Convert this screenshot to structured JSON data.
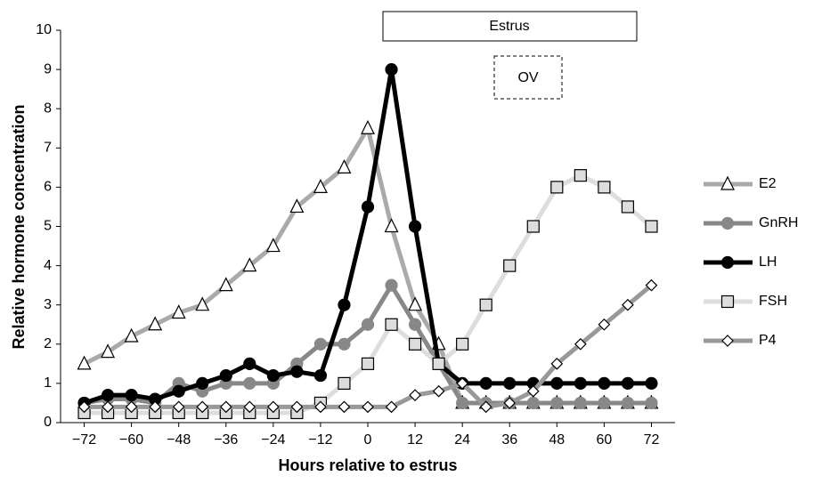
{
  "chart_data": {
    "type": "line",
    "x_label": "Hours relative to estrus",
    "y_label": "Relative hormone concentration",
    "x": [
      -72,
      -66,
      -60,
      -54,
      -48,
      -42,
      -36,
      -30,
      -24,
      -18,
      -12,
      -6,
      0,
      6,
      12,
      18,
      24,
      30,
      36,
      42,
      48,
      54,
      60,
      66,
      72
    ],
    "series": [
      {
        "name": "E2",
        "color": "#aaaaaa",
        "marker": "triangle",
        "values": [
          1.5,
          1.8,
          2.2,
          2.5,
          2.8,
          3.0,
          3.5,
          4.0,
          4.5,
          5.5,
          6.0,
          6.5,
          7.5,
          5.0,
          3.0,
          2.0,
          0.5,
          0.5,
          0.5,
          0.5,
          0.5,
          0.5,
          0.5,
          0.5,
          0.5
        ]
      },
      {
        "name": "GnRH",
        "color": "#888888",
        "marker": "circle",
        "values": [
          0.5,
          0.6,
          0.6,
          0.5,
          1.0,
          0.8,
          1.0,
          1.0,
          1.0,
          1.5,
          2.0,
          2.0,
          2.5,
          3.5,
          2.5,
          1.5,
          0.5,
          0.5,
          0.5,
          0.5,
          0.5,
          0.5,
          0.5,
          0.5,
          0.5
        ]
      },
      {
        "name": "LH",
        "color": "#000000",
        "marker": "circle",
        "values": [
          0.5,
          0.7,
          0.7,
          0.6,
          0.8,
          1.0,
          1.2,
          1.5,
          1.2,
          1.3,
          1.2,
          3.0,
          5.5,
          9.0,
          5.0,
          1.5,
          1.0,
          1.0,
          1.0,
          1.0,
          1.0,
          1.0,
          1.0,
          1.0,
          1.0
        ]
      },
      {
        "name": "FSH",
        "color": "#dddddd",
        "marker": "square",
        "values": [
          0.25,
          0.25,
          0.25,
          0.25,
          0.25,
          0.25,
          0.25,
          0.25,
          0.25,
          0.25,
          0.5,
          1.0,
          1.5,
          2.5,
          2.0,
          1.5,
          2.0,
          3.0,
          4.0,
          5.0,
          6.0,
          6.3,
          6.0,
          5.5,
          5.0
        ]
      },
      {
        "name": "P4",
        "color": "#999999",
        "marker": "diamond",
        "values": [
          0.4,
          0.4,
          0.4,
          0.4,
          0.4,
          0.4,
          0.4,
          0.4,
          0.4,
          0.4,
          0.4,
          0.4,
          0.4,
          0.4,
          0.7,
          0.8,
          1.0,
          0.4,
          0.5,
          0.8,
          1.5,
          2.0,
          2.5,
          3.0,
          3.5
        ]
      }
    ],
    "annotations": [
      "Estrus",
      "OV"
    ],
    "xlim": [
      -78,
      78
    ],
    "xticks": [
      {
        "value": -72,
        "label": "−72"
      },
      {
        "value": -60,
        "label": "−60"
      },
      {
        "value": -48,
        "label": "−48"
      },
      {
        "value": -36,
        "label": "−36"
      },
      {
        "value": -24,
        "label": "−24"
      },
      {
        "value": -12,
        "label": "−12"
      },
      0,
      12,
      24,
      36,
      48,
      60,
      72
    ],
    "ylim": [
      0,
      10
    ],
    "yticks": [
      0,
      1,
      2,
      3,
      4,
      5,
      6,
      7,
      8,
      9,
      10
    ],
    "legend": "right"
  }
}
